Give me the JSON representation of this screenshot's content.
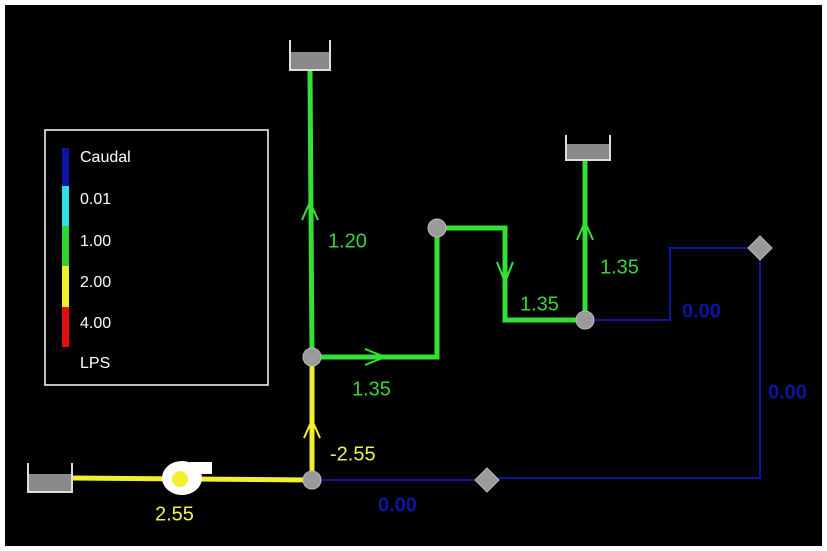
{
  "legend": {
    "title": "Caudal",
    "levels": [
      "0.01",
      "1.00",
      "2.00",
      "4.00"
    ],
    "unit": "LPS"
  },
  "link_labels": [
    "1.20",
    "1.35",
    "1.35",
    "1.35",
    "0.00",
    "0.00",
    "0.00",
    "-2.55",
    "2.55"
  ]
}
